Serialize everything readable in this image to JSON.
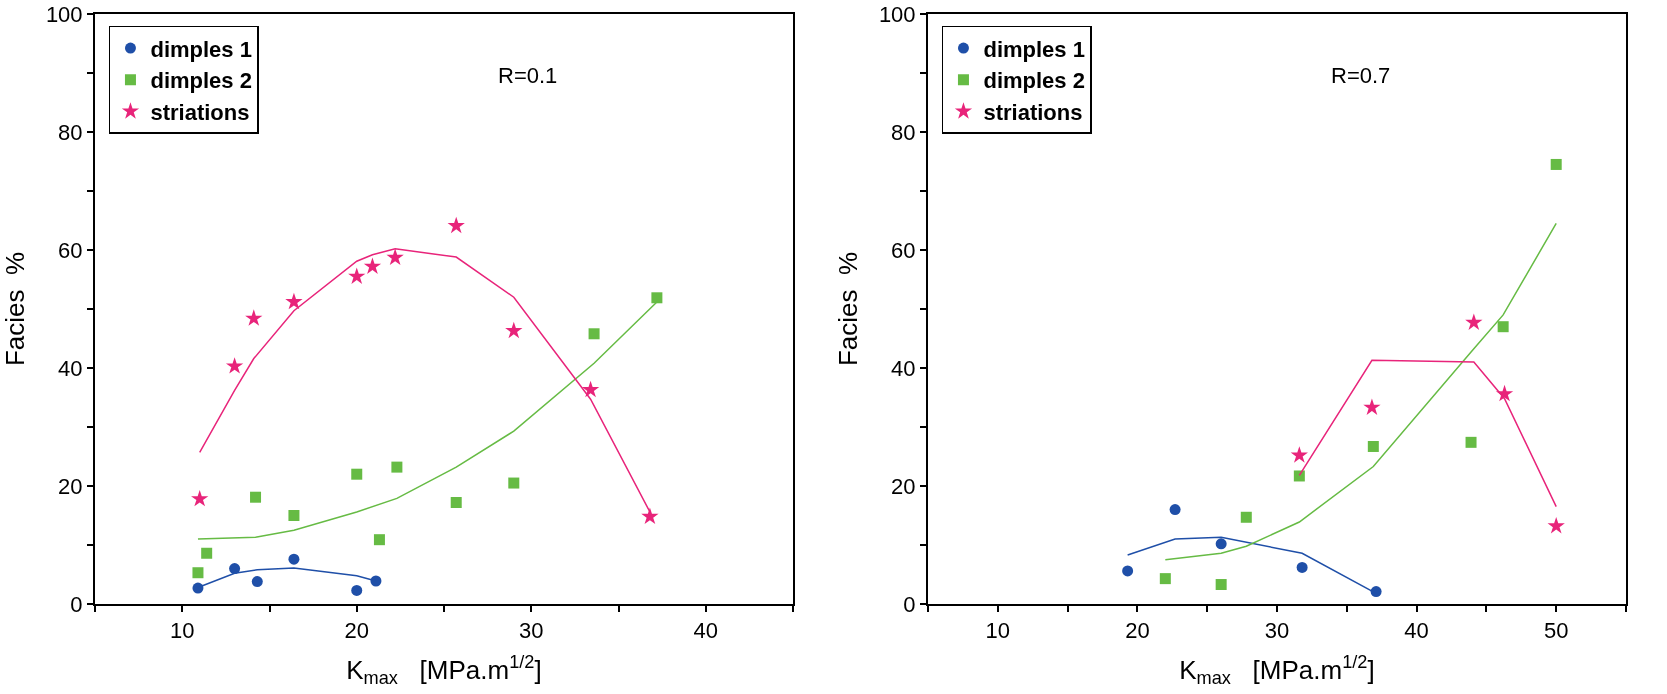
{
  "chart_data": [
    {
      "type": "scatter",
      "xlabel": "K$_{max}$   [MPa.m$^{1/2}$]",
      "ylabel": "Facies  %",
      "annotations": [
        "R=0.1"
      ],
      "xlim": [
        5,
        45
      ],
      "ylim": [
        0,
        100
      ],
      "xticks": [
        {
          "value": 5,
          "label": null
        },
        10,
        {
          "value": 15,
          "label": null
        },
        20,
        {
          "value": 25,
          "label": null
        },
        30,
        {
          "value": 35,
          "label": null
        },
        40,
        {
          "value": 45,
          "label": null
        }
      ],
      "yticks": [
        0,
        {
          "value": 10,
          "label": null
        },
        20,
        {
          "value": 30,
          "label": null
        },
        40,
        {
          "value": 50,
          "label": null
        },
        60,
        {
          "value": 70,
          "label": null
        },
        80,
        {
          "value": 90,
          "label": null
        },
        100
      ],
      "grid": false,
      "legend": "top left",
      "series": [
        {
          "name": "dimples 1",
          "color": "#1f4fa8",
          "marker": "circle",
          "x": [
            10.9,
            13.0,
            14.3,
            16.4,
            20.0,
            21.1
          ],
          "values": [
            2.7,
            6.0,
            3.8,
            7.6,
            2.3,
            3.9
          ]
        },
        {
          "name": "dimples 2",
          "color": "#66bb44",
          "marker": "square",
          "x": [
            10.9,
            11.4,
            14.2,
            16.4,
            20.0,
            21.3,
            22.3,
            25.7,
            29.0,
            33.6,
            37.2
          ],
          "values": [
            5.3,
            8.6,
            18.1,
            15.0,
            22.0,
            10.9,
            23.2,
            17.2,
            20.5,
            45.8,
            51.9
          ]
        },
        {
          "name": "striations",
          "color": "#e8247a",
          "marker": "star",
          "x": [
            11.0,
            13.0,
            14.1,
            16.4,
            20.0,
            20.9,
            22.2,
            25.7,
            29.0,
            33.4,
            36.8
          ],
          "values": [
            17.8,
            40.3,
            48.4,
            51.2,
            55.5,
            57.2,
            58.7,
            64.1,
            46.3,
            36.3,
            14.8
          ]
        },
        {
          "type": "line",
          "color": "#1f4fa8",
          "marker": "none",
          "line_style": "solid",
          "x": [
            10.9,
            13.0,
            14.3,
            16.4,
            20.0,
            21.1
          ],
          "values": [
            2.8,
            5.2,
            5.8,
            6.1,
            4.8,
            3.9
          ]
        },
        {
          "type": "line",
          "color": "#66bb44",
          "marker": "none",
          "line_style": "solid",
          "x": [
            10.9,
            14.2,
            16.4,
            20.0,
            22.3,
            25.7,
            29.0,
            33.6,
            37.2
          ],
          "values": [
            11.0,
            11.3,
            12.5,
            15.6,
            17.9,
            23.2,
            29.3,
            40.8,
            51.2
          ]
        },
        {
          "type": "line",
          "color": "#e8247a",
          "marker": "none",
          "line_style": "solid",
          "x": [
            11.0,
            13.0,
            14.1,
            16.4,
            20.0,
            20.9,
            22.2,
            25.7,
            29.0,
            33.4,
            36.8
          ],
          "values": [
            25.7,
            36.2,
            41.6,
            49.7,
            58.1,
            59.2,
            60.2,
            58.8,
            52.0,
            34.7,
            15.6
          ]
        }
      ]
    },
    {
      "type": "scatter",
      "xlabel": "K$_{max}$   [MPa.m$^{1/2}$]",
      "ylabel": "Facies  %",
      "annotations": [
        "R=0.7"
      ],
      "xlim": [
        5,
        55
      ],
      "ylim": [
        0,
        100
      ],
      "xticks": [
        {
          "value": 5,
          "label": null
        },
        10,
        {
          "value": 15,
          "label": null
        },
        20,
        {
          "value": 25,
          "label": null
        },
        30,
        {
          "value": 35,
          "label": null
        },
        40,
        {
          "value": 45,
          "label": null
        },
        50,
        {
          "value": 55,
          "label": null
        }
      ],
      "yticks": [
        0,
        {
          "value": 10,
          "label": null
        },
        20,
        {
          "value": 30,
          "label": null
        },
        40,
        {
          "value": 50,
          "label": null
        },
        60,
        {
          "value": 70,
          "label": null
        },
        80,
        {
          "value": 90,
          "label": null
        },
        100
      ],
      "grid": false,
      "legend": "top left",
      "series": [
        {
          "name": "dimples 1",
          "color": "#1f4fa8",
          "marker": "circle",
          "x": [
            19.3,
            22.7,
            26.0,
            31.8,
            37.1
          ],
          "values": [
            5.6,
            16.0,
            10.2,
            6.2,
            2.1
          ]
        },
        {
          "name": "dimples 2",
          "color": "#66bb44",
          "marker": "square",
          "x": [
            22.0,
            26.0,
            27.8,
            31.6,
            36.9,
            43.9,
            46.2,
            50.0
          ],
          "values": [
            4.3,
            3.3,
            14.7,
            21.7,
            26.7,
            27.4,
            47.0,
            74.5
          ]
        },
        {
          "name": "striations",
          "color": "#e8247a",
          "marker": "star",
          "x": [
            31.6,
            36.8,
            44.1,
            46.3,
            50.0
          ],
          "values": [
            25.2,
            33.3,
            47.7,
            35.6,
            13.2
          ]
        },
        {
          "type": "line",
          "color": "#1f4fa8",
          "marker": "none",
          "line_style": "solid",
          "x": [
            19.3,
            22.7,
            26.0,
            31.8,
            37.1
          ],
          "values": [
            8.3,
            11.0,
            11.3,
            8.6,
            1.8
          ]
        },
        {
          "type": "line",
          "color": "#66bb44",
          "marker": "none",
          "line_style": "solid",
          "x": [
            22.0,
            26.0,
            27.8,
            31.6,
            36.9,
            43.9,
            46.2,
            50.0
          ],
          "values": [
            7.5,
            8.6,
            9.8,
            13.9,
            23.3,
            42.7,
            49.0,
            64.5
          ]
        },
        {
          "type": "line",
          "color": "#e8247a",
          "marker": "none",
          "line_style": "solid",
          "x": [
            31.6,
            36.8,
            44.1,
            46.3,
            50.0
          ],
          "values": [
            21.8,
            41.3,
            41.0,
            34.8,
            16.5
          ]
        }
      ]
    }
  ]
}
